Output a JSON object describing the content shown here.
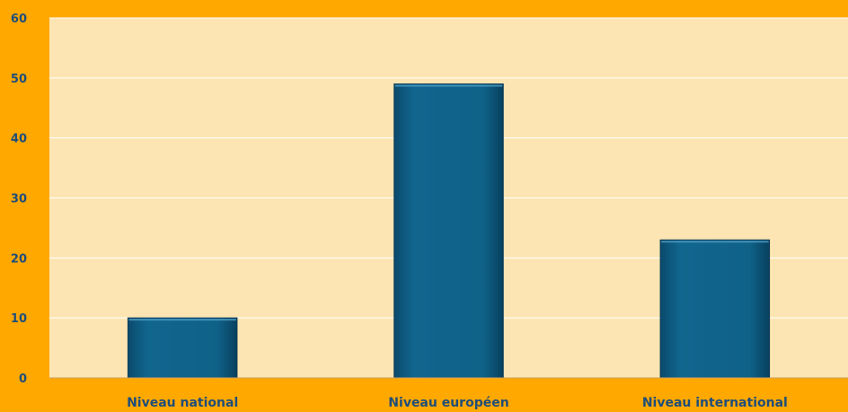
{
  "chart_data": {
    "type": "bar",
    "categories": [
      "Niveau national",
      "Niveau européen",
      "Niveau international"
    ],
    "values": [
      10,
      49,
      23
    ],
    "title": "",
    "xlabel": "",
    "ylabel": "",
    "ylim": [
      0,
      60
    ],
    "yticks": [
      0,
      10,
      20,
      30,
      40,
      50,
      60
    ],
    "grid": true,
    "legend": "none"
  },
  "colors": {
    "background": "#ffa800",
    "plot_area": "#fde5b3",
    "bar": "#0e5e86",
    "bar_dark": "#083a55",
    "gridline": "#ffffff",
    "label": "#1f4e79"
  }
}
